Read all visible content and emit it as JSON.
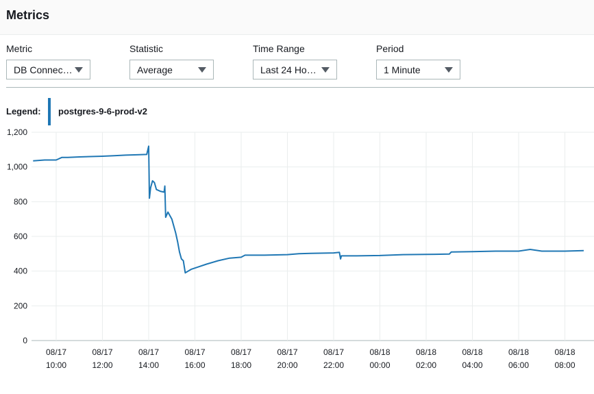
{
  "header": {
    "title": "Metrics"
  },
  "controls": {
    "metric": {
      "label": "Metric",
      "value": "DB Connec…"
    },
    "statistic": {
      "label": "Statistic",
      "value": "Average"
    },
    "time_range": {
      "label": "Time Range",
      "value": "Last 24 Ho…"
    },
    "period": {
      "label": "Period",
      "value": "1 Minute"
    }
  },
  "legend": {
    "title": "Legend:",
    "series_name": "postgres-9-6-prod-v2",
    "color": "#1f77b4"
  },
  "chart_data": {
    "type": "line",
    "title": "",
    "xlabel": "",
    "ylabel": "",
    "ylim": [
      0,
      1200
    ],
    "y_ticks": [
      "0",
      "200",
      "400",
      "600",
      "800",
      "1,000",
      "1,200"
    ],
    "x_ticks": [
      {
        "date": "08/17",
        "time": "10:00"
      },
      {
        "date": "08/17",
        "time": "12:00"
      },
      {
        "date": "08/17",
        "time": "14:00"
      },
      {
        "date": "08/17",
        "time": "16:00"
      },
      {
        "date": "08/17",
        "time": "18:00"
      },
      {
        "date": "08/17",
        "time": "20:00"
      },
      {
        "date": "08/17",
        "time": "22:00"
      },
      {
        "date": "08/18",
        "time": "00:00"
      },
      {
        "date": "08/18",
        "time": "02:00"
      },
      {
        "date": "08/18",
        "time": "04:00"
      },
      {
        "date": "08/18",
        "time": "06:00"
      },
      {
        "date": "08/18",
        "time": "08:00"
      }
    ],
    "x_range": [
      "08/17 09:00",
      "08/18 09:00"
    ],
    "grid": true,
    "series": [
      {
        "name": "postgres-9-6-prod-v2",
        "color": "#1f77b4",
        "points": [
          [
            "08/17 09:00",
            1035
          ],
          [
            "08/17 09:30",
            1040
          ],
          [
            "08/17 10:00",
            1040
          ],
          [
            "08/17 10:15",
            1055
          ],
          [
            "08/17 10:30",
            1055
          ],
          [
            "08/17 11:00",
            1058
          ],
          [
            "08/17 12:00",
            1062
          ],
          [
            "08/17 12:30",
            1065
          ],
          [
            "08/17 13:00",
            1068
          ],
          [
            "08/17 13:30",
            1070
          ],
          [
            "08/17 13:55",
            1072
          ],
          [
            "08/17 14:00",
            1120
          ],
          [
            "08/17 14:02",
            820
          ],
          [
            "08/17 14:05",
            880
          ],
          [
            "08/17 14:10",
            920
          ],
          [
            "08/17 14:15",
            910
          ],
          [
            "08/17 14:20",
            870
          ],
          [
            "08/17 14:30",
            860
          ],
          [
            "08/17 14:40",
            855
          ],
          [
            "08/17 14:42",
            890
          ],
          [
            "08/17 14:44",
            710
          ],
          [
            "08/17 14:50",
            740
          ],
          [
            "08/17 15:00",
            700
          ],
          [
            "08/17 15:05",
            660
          ],
          [
            "08/17 15:10",
            620
          ],
          [
            "08/17 15:15",
            570
          ],
          [
            "08/17 15:20",
            510
          ],
          [
            "08/17 15:25",
            470
          ],
          [
            "08/17 15:30",
            460
          ],
          [
            "08/17 15:35",
            390
          ],
          [
            "08/17 15:50",
            410
          ],
          [
            "08/17 16:10",
            425
          ],
          [
            "08/17 16:30",
            440
          ],
          [
            "08/17 17:00",
            460
          ],
          [
            "08/17 17:30",
            475
          ],
          [
            "08/17 18:00",
            480
          ],
          [
            "08/17 18:10",
            492
          ],
          [
            "08/17 19:00",
            492
          ],
          [
            "08/17 20:00",
            495
          ],
          [
            "08/17 20:30",
            500
          ],
          [
            "08/17 21:00",
            502
          ],
          [
            "08/17 22:00",
            505
          ],
          [
            "08/17 22:15",
            508
          ],
          [
            "08/17 22:18",
            470
          ],
          [
            "08/17 22:20",
            488
          ],
          [
            "08/17 23:00",
            488
          ],
          [
            "08/18 00:00",
            490
          ],
          [
            "08/18 01:00",
            495
          ],
          [
            "08/18 02:00",
            496
          ],
          [
            "08/18 03:00",
            498
          ],
          [
            "08/18 03:05",
            510
          ],
          [
            "08/18 04:00",
            512
          ],
          [
            "08/18 05:00",
            515
          ],
          [
            "08/18 06:00",
            515
          ],
          [
            "08/18 06:30",
            525
          ],
          [
            "08/18 07:00",
            515
          ],
          [
            "08/18 08:00",
            515
          ],
          [
            "08/18 09:00",
            518
          ]
        ]
      }
    ]
  }
}
